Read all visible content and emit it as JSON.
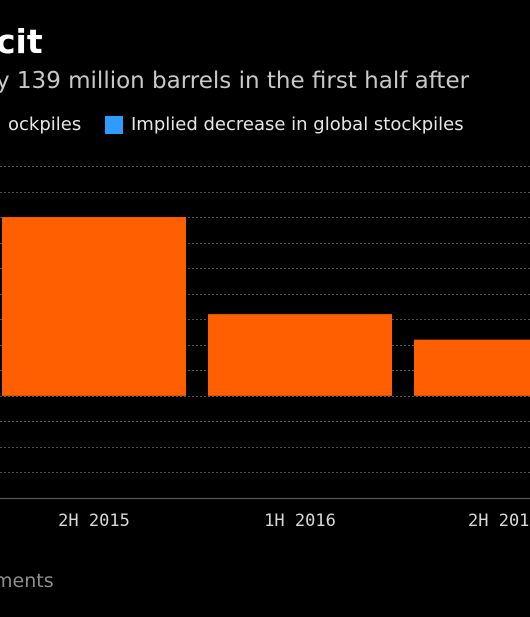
{
  "header": {
    "title": "cit",
    "subtitle": "y 139 million barrels in the first half after"
  },
  "legend": [
    {
      "label": "ockpiles",
      "color": "#ff5f00"
    },
    {
      "label": "Implied decrease in global stockpiles",
      "color": "#2f9bff"
    }
  ],
  "source": "ments",
  "colors": {
    "background": "#000000",
    "bar": "#ff5f00",
    "grid": "#555555"
  },
  "chart_data": {
    "type": "bar",
    "categories": [
      "2H 2015",
      "1H 2016",
      "2H 201"
    ],
    "series": [
      {
        "name": "ockpiles",
        "values": [
          7,
          3.2,
          2.2
        ]
      }
    ],
    "ylim": [
      -4,
      9
    ],
    "grid": true,
    "legend_position": "top"
  }
}
